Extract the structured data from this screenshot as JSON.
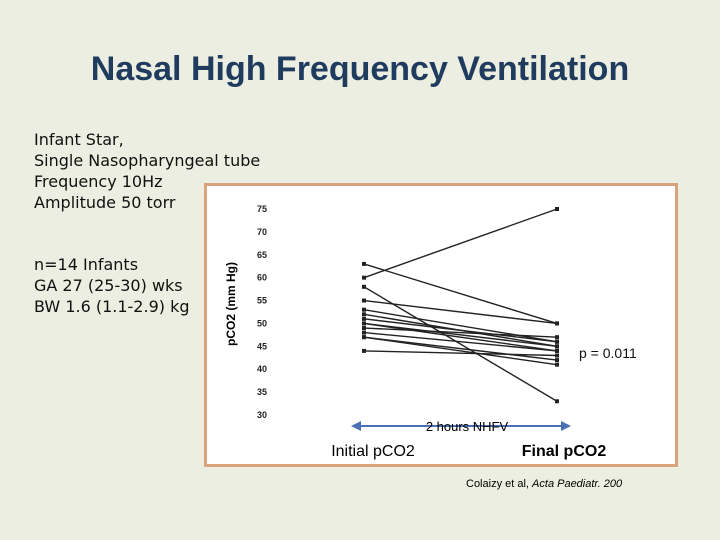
{
  "slide": {
    "title": "Nasal High Frequency Ventilation",
    "info_lines_top": [
      "Infant Star,",
      "Single Nasopharyngeal tube",
      "Frequency 10Hz",
      "Amplitude 50 torr"
    ],
    "info_lines_bottom": [
      "n=14 Infants",
      "GA 27 (25-30) wks",
      "BW 1.6 (1.1-2.9) kg"
    ],
    "citation_prefix": "Colaizy et al,",
    "citation_journal": "Acta Paediatr. 200"
  },
  "colors": {
    "frame_border": "#d9a47c",
    "title": "#1f3b5e",
    "series": "#222222",
    "arrow": "#4a6fb5"
  },
  "chart_data": {
    "type": "line",
    "categories": [
      "Initial pCO2",
      "Final pCO2"
    ],
    "ylabel": "pCO2 (mm Hg)",
    "ylim": [
      30,
      75
    ],
    "yticks": [
      "75",
      "70",
      "65",
      "60",
      "55",
      "50",
      "45",
      "40",
      "35",
      "30"
    ],
    "arrow_label": "2 hours NHFV",
    "p_value_label": "p = 0.011",
    "series": [
      {
        "values": [
          60,
          75
        ]
      },
      {
        "values": [
          63,
          50
        ]
      },
      {
        "values": [
          55,
          50
        ]
      },
      {
        "values": [
          53,
          46
        ]
      },
      {
        "values": [
          52,
          45
        ]
      },
      {
        "values": [
          51,
          46
        ]
      },
      {
        "values": [
          50,
          45
        ]
      },
      {
        "values": [
          50,
          44
        ]
      },
      {
        "values": [
          49,
          47
        ]
      },
      {
        "values": [
          48,
          44
        ]
      },
      {
        "values": [
          47,
          42
        ]
      },
      {
        "values": [
          47,
          41
        ]
      },
      {
        "values": [
          44,
          43
        ]
      },
      {
        "values": [
          58,
          33
        ]
      }
    ]
  }
}
